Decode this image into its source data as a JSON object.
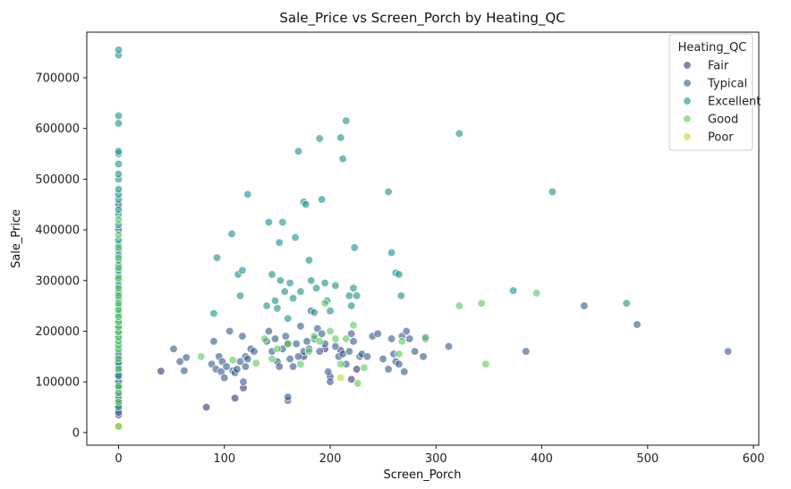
{
  "chart_data": {
    "type": "scatter",
    "title": "Sale_Price vs Screen_Porch by Heating_QC",
    "xlabel": "Screen_Porch",
    "ylabel": "Sale_Price",
    "xlim": [
      -30,
      605
    ],
    "ylim": [
      -25000,
      790000
    ],
    "xticks": [
      0,
      100,
      200,
      300,
      400,
      500,
      600
    ],
    "yticks": [
      0,
      100000,
      200000,
      300000,
      400000,
      500000,
      600000,
      700000
    ],
    "grid": false,
    "legend": {
      "title": "Heating_QC",
      "placement": "top-right"
    },
    "series": [
      {
        "name": "Fair",
        "color": "#46327e",
        "points": [
          [
            0,
            35000
          ],
          [
            0,
            45000
          ],
          [
            0,
            52000
          ],
          [
            0,
            60000
          ],
          [
            0,
            68000
          ],
          [
            0,
            75000
          ],
          [
            0,
            85000
          ],
          [
            0,
            95000
          ],
          [
            0,
            105000
          ],
          [
            0,
            118000
          ],
          [
            0,
            125000
          ],
          [
            0,
            135000
          ],
          [
            0,
            145000
          ],
          [
            0,
            155000
          ],
          [
            0,
            165000
          ],
          [
            40,
            121000
          ],
          [
            83,
            50000
          ],
          [
            110,
            68000
          ],
          [
            118,
            88000
          ],
          [
            160,
            175000
          ],
          [
            175,
            150000
          ],
          [
            195,
            165000
          ],
          [
            200,
            110000
          ],
          [
            210,
            162000
          ],
          [
            220,
            105000
          ],
          [
            225,
            125000
          ]
        ]
      },
      {
        "name": "Typical",
        "color": "#365c8d",
        "points": [
          [
            0,
            40000
          ],
          [
            0,
            55000
          ],
          [
            0,
            65000
          ],
          [
            0,
            80000
          ],
          [
            0,
            90000
          ],
          [
            0,
            100000
          ],
          [
            0,
            110000
          ],
          [
            0,
            115000
          ],
          [
            0,
            120000
          ],
          [
            0,
            128000
          ],
          [
            0,
            132000
          ],
          [
            0,
            140000
          ],
          [
            0,
            148000
          ],
          [
            0,
            152000
          ],
          [
            0,
            158000
          ],
          [
            0,
            162000
          ],
          [
            0,
            170000
          ],
          [
            0,
            178000
          ],
          [
            0,
            185000
          ],
          [
            0,
            195000
          ],
          [
            0,
            205000
          ],
          [
            0,
            215000
          ],
          [
            0,
            230000
          ],
          [
            0,
            245000
          ],
          [
            0,
            260000
          ],
          [
            0,
            280000
          ],
          [
            0,
            300000
          ],
          [
            0,
            330000
          ],
          [
            0,
            360000
          ],
          [
            0,
            400000
          ],
          [
            0,
            450000
          ],
          [
            52,
            165000
          ],
          [
            58,
            140000
          ],
          [
            62,
            122000
          ],
          [
            64,
            148000
          ],
          [
            88,
            135000
          ],
          [
            90,
            180000
          ],
          [
            92,
            125000
          ],
          [
            95,
            150000
          ],
          [
            97,
            120000
          ],
          [
            98,
            140000
          ],
          [
            100,
            108000
          ],
          [
            102,
            130000
          ],
          [
            105,
            200000
          ],
          [
            108,
            122000
          ],
          [
            110,
            118000
          ],
          [
            112,
            125000
          ],
          [
            115,
            140000
          ],
          [
            117,
            190000
          ],
          [
            118,
            100000
          ],
          [
            120,
            150000
          ],
          [
            120,
            130000
          ],
          [
            122,
            145000
          ],
          [
            125,
            165000
          ],
          [
            128,
            160000
          ],
          [
            140,
            180000
          ],
          [
            142,
            200000
          ],
          [
            145,
            160000
          ],
          [
            148,
            185000
          ],
          [
            150,
            140000
          ],
          [
            152,
            130000
          ],
          [
            155,
            165000
          ],
          [
            158,
            190000
          ],
          [
            160,
            63000
          ],
          [
            160,
            70000
          ],
          [
            162,
            145000
          ],
          [
            165,
            130000
          ],
          [
            168,
            175000
          ],
          [
            170,
            150000
          ],
          [
            172,
            210000
          ],
          [
            175,
            160000
          ],
          [
            178,
            180000
          ],
          [
            180,
            165000
          ],
          [
            182,
            240000
          ],
          [
            185,
            185000
          ],
          [
            188,
            205000
          ],
          [
            190,
            160000
          ],
          [
            192,
            195000
          ],
          [
            195,
            175000
          ],
          [
            198,
            120000
          ],
          [
            200,
            100000
          ],
          [
            205,
            170000
          ],
          [
            208,
            150000
          ],
          [
            212,
            155000
          ],
          [
            215,
            135000
          ],
          [
            218,
            160000
          ],
          [
            220,
            195000
          ],
          [
            222,
            180000
          ],
          [
            228,
            150000
          ],
          [
            230,
            155000
          ],
          [
            235,
            150000
          ],
          [
            240,
            190000
          ],
          [
            245,
            195000
          ],
          [
            250,
            145000
          ],
          [
            255,
            125000
          ],
          [
            258,
            185000
          ],
          [
            260,
            155000
          ],
          [
            262,
            140000
          ],
          [
            265,
            135000
          ],
          [
            268,
            190000
          ],
          [
            270,
            120000
          ],
          [
            272,
            200000
          ],
          [
            275,
            185000
          ],
          [
            280,
            160000
          ],
          [
            288,
            150000
          ],
          [
            290,
            185000
          ],
          [
            312,
            170000
          ],
          [
            385,
            160000
          ],
          [
            440,
            250000
          ],
          [
            490,
            213000
          ],
          [
            576,
            160000
          ]
        ]
      },
      {
        "name": "Excellent",
        "color": "#21918c",
        "points": [
          [
            0,
            12000
          ],
          [
            0,
            50000
          ],
          [
            0,
            72000
          ],
          [
            0,
            88000
          ],
          [
            0,
            112000
          ],
          [
            0,
            138000
          ],
          [
            0,
            168000
          ],
          [
            0,
            175000
          ],
          [
            0,
            182000
          ],
          [
            0,
            190000
          ],
          [
            0,
            200000
          ],
          [
            0,
            210000
          ],
          [
            0,
            220000
          ],
          [
            0,
            235000
          ],
          [
            0,
            250000
          ],
          [
            0,
            265000
          ],
          [
            0,
            275000
          ],
          [
            0,
            290000
          ],
          [
            0,
            310000
          ],
          [
            0,
            320000
          ],
          [
            0,
            340000
          ],
          [
            0,
            350000
          ],
          [
            0,
            370000
          ],
          [
            0,
            380000
          ],
          [
            0,
            410000
          ],
          [
            0,
            430000
          ],
          [
            0,
            440000
          ],
          [
            0,
            460000
          ],
          [
            0,
            470000
          ],
          [
            0,
            480000
          ],
          [
            0,
            500000
          ],
          [
            0,
            510000
          ],
          [
            0,
            530000
          ],
          [
            0,
            550000
          ],
          [
            0,
            555000
          ],
          [
            0,
            610000
          ],
          [
            0,
            625000
          ],
          [
            0,
            745000
          ],
          [
            0,
            755000
          ],
          [
            90,
            235000
          ],
          [
            93,
            345000
          ],
          [
            107,
            392000
          ],
          [
            113,
            312000
          ],
          [
            115,
            270000
          ],
          [
            117,
            320000
          ],
          [
            122,
            470000
          ],
          [
            140,
            250000
          ],
          [
            142,
            415000
          ],
          [
            145,
            312000
          ],
          [
            148,
            260000
          ],
          [
            150,
            245000
          ],
          [
            152,
            375000
          ],
          [
            153,
            300000
          ],
          [
            155,
            415000
          ],
          [
            157,
            278000
          ],
          [
            160,
            225000
          ],
          [
            162,
            295000
          ],
          [
            165,
            265000
          ],
          [
            167,
            385000
          ],
          [
            170,
            555000
          ],
          [
            172,
            278000
          ],
          [
            175,
            455000
          ],
          [
            177,
            450000
          ],
          [
            180,
            340000
          ],
          [
            182,
            300000
          ],
          [
            185,
            237000
          ],
          [
            187,
            285000
          ],
          [
            190,
            580000
          ],
          [
            192,
            460000
          ],
          [
            195,
            295000
          ],
          [
            197,
            260000
          ],
          [
            200,
            240000
          ],
          [
            205,
            290000
          ],
          [
            210,
            582000
          ],
          [
            212,
            540000
          ],
          [
            215,
            615000
          ],
          [
            218,
            270000
          ],
          [
            220,
            250000
          ],
          [
            222,
            285000
          ],
          [
            223,
            365000
          ],
          [
            225,
            270000
          ],
          [
            255,
            475000
          ],
          [
            258,
            355000
          ],
          [
            262,
            315000
          ],
          [
            265,
            312000
          ],
          [
            267,
            270000
          ],
          [
            322,
            590000
          ],
          [
            373,
            280000
          ],
          [
            410,
            475000
          ],
          [
            480,
            255000
          ]
        ]
      },
      {
        "name": "Good",
        "color": "#5ec962",
        "points": [
          [
            0,
            60000
          ],
          [
            0,
            78000
          ],
          [
            0,
            92000
          ],
          [
            0,
            125000
          ],
          [
            0,
            145000
          ],
          [
            0,
            165000
          ],
          [
            0,
            172000
          ],
          [
            0,
            180000
          ],
          [
            0,
            188000
          ],
          [
            0,
            198000
          ],
          [
            0,
            208000
          ],
          [
            0,
            218000
          ],
          [
            0,
            228000
          ],
          [
            0,
            242000
          ],
          [
            0,
            255000
          ],
          [
            0,
            270000
          ],
          [
            0,
            285000
          ],
          [
            0,
            305000
          ],
          [
            0,
            325000
          ],
          [
            0,
            345000
          ],
          [
            0,
            365000
          ],
          [
            0,
            390000
          ],
          [
            0,
            420000
          ],
          [
            78,
            150000
          ],
          [
            108,
            143000
          ],
          [
            130,
            137000
          ],
          [
            138,
            185000
          ],
          [
            145,
            145000
          ],
          [
            150,
            165000
          ],
          [
            160,
            175000
          ],
          [
            172,
            135000
          ],
          [
            180,
            160000
          ],
          [
            185,
            190000
          ],
          [
            190,
            180000
          ],
          [
            195,
            255000
          ],
          [
            200,
            200000
          ],
          [
            205,
            185000
          ],
          [
            210,
            135000
          ],
          [
            215,
            185000
          ],
          [
            222,
            212000
          ],
          [
            226,
            97000
          ],
          [
            232,
            128000
          ],
          [
            265,
            155000
          ],
          [
            268,
            180000
          ],
          [
            290,
            188000
          ],
          [
            322,
            250000
          ],
          [
            343,
            255000
          ],
          [
            347,
            135000
          ],
          [
            395,
            275000
          ]
        ]
      },
      {
        "name": "Poor",
        "color": "#b5de2b",
        "points": [
          [
            0,
            12000
          ],
          [
            210,
            108000
          ]
        ]
      }
    ]
  }
}
